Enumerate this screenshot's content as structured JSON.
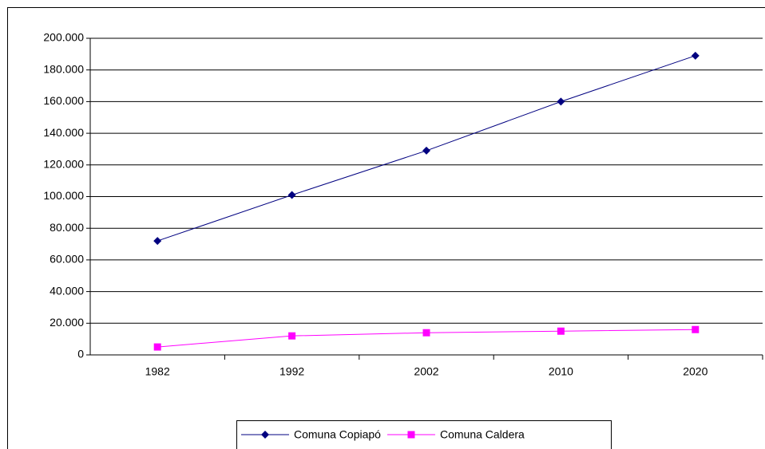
{
  "chart_data": {
    "type": "line",
    "categories": [
      "1982",
      "1992",
      "2002",
      "2010",
      "2020"
    ],
    "series": [
      {
        "name": "Comuna Copiapó",
        "color": "#000080",
        "marker": "diamond",
        "values": [
          72000,
          101000,
          129000,
          160000,
          189000
        ]
      },
      {
        "name": "Comuna Caldera",
        "color": "#ff00ff",
        "marker": "square",
        "values": [
          5000,
          12000,
          14000,
          15000,
          16000
        ]
      }
    ],
    "ylim": [
      0,
      200000
    ],
    "yticks": [
      0,
      {
        "value": 20000,
        "label": "20.000"
      },
      {
        "value": 40000,
        "label": "40.000"
      },
      {
        "value": 60000,
        "label": "60.000"
      },
      {
        "value": 80000,
        "label": "80.000"
      },
      {
        "value": 100000,
        "label": "100.000"
      },
      {
        "value": 120000,
        "label": "120.000"
      },
      {
        "value": 140000,
        "label": "140.000"
      },
      {
        "value": 160000,
        "label": "160.000"
      },
      {
        "value": 180000,
        "label": "180.000"
      },
      {
        "value": 200000,
        "label": "200.000"
      }
    ],
    "grid": true,
    "legend": "bottom"
  }
}
